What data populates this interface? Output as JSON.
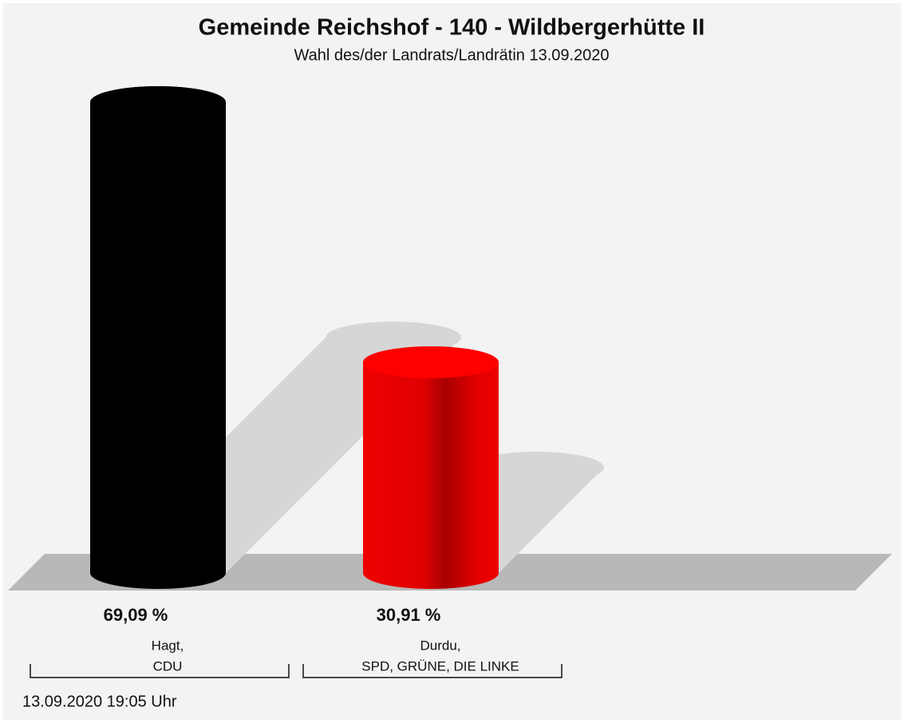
{
  "chart_data": {
    "type": "bar",
    "title": "Gemeinde Reichshof - 140 - Wildbergerhütte II",
    "subtitle": "Wahl des/der Landrats/Landrätin 13.09.2020",
    "categories": [
      [
        "Hagt,",
        "CDU"
      ],
      [
        "Durdu,",
        "SPD, GRÜNE, DIE LINKE"
      ]
    ],
    "values": [
      69.09,
      30.91
    ],
    "value_labels": [
      "69,09 %",
      "30,91 %"
    ],
    "colors": [
      "#000000",
      "#ee0000"
    ],
    "timestamp": "13.09.2020 19:05 Uhr"
  }
}
